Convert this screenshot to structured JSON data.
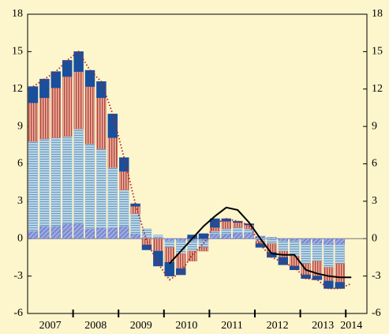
{
  "chart_data": {
    "type": "stacked_bar_line",
    "years": [
      "2007",
      "2008",
      "2009",
      "2010",
      "2011",
      "2012",
      "2013",
      "2014"
    ],
    "ylim": [
      -6,
      18
    ],
    "yticks": [
      -6,
      -3,
      0,
      3,
      6,
      9,
      12,
      15,
      18
    ],
    "y2lim": [
      -6,
      18
    ],
    "y2ticks": [
      -6,
      -3,
      0,
      3,
      6,
      9,
      12,
      15,
      18
    ],
    "series": [
      {
        "color": "#6f7fd0",
        "pattern": "hatch",
        "values": [
          0.6,
          1.0,
          1.0,
          1.2,
          1.2,
          0.8,
          0.9,
          0.9,
          1.0,
          0.4,
          0.1,
          0.1,
          -0.2,
          -0.2,
          -0.2,
          -0.2,
          0.4,
          0.4,
          0.5,
          0.5,
          0.2,
          0.1,
          -0.2,
          -0.2,
          -0.4,
          -0.4,
          -0.5,
          -0.5,
          null
        ]
      },
      {
        "color": "#9fc3dc",
        "pattern": "hlines",
        "values": [
          7.2,
          7.0,
          7.1,
          7.0,
          7.6,
          6.8,
          6.3,
          4.8,
          2.9,
          1.6,
          0.7,
          0.2,
          -0.5,
          -1.0,
          -0.8,
          -0.5,
          0.2,
          0.4,
          0.4,
          0.3,
          -0.2,
          -0.4,
          -0.8,
          -1.2,
          -1.6,
          -1.4,
          -1.8,
          -1.5,
          null
        ]
      },
      {
        "color": "#c9705f",
        "pattern": "vlines",
        "values": [
          3.1,
          3.3,
          4.0,
          4.8,
          4.6,
          4.6,
          4.1,
          2.4,
          1.5,
          0.6,
          -0.5,
          -1.0,
          -1.2,
          -1.2,
          -0.8,
          -0.3,
          0.3,
          0.6,
          0.4,
          0.3,
          -0.2,
          -0.7,
          -0.5,
          -0.8,
          -0.9,
          -1.2,
          -1.1,
          -1.5,
          null
        ]
      },
      {
        "color": "#1a4f9c",
        "pattern": "solid",
        "values": [
          1.3,
          1.5,
          1.3,
          1.3,
          1.6,
          1.3,
          1.3,
          1.9,
          1.1,
          0.2,
          -0.4,
          -1.2,
          -1.1,
          -0.5,
          0.3,
          0.4,
          0.7,
          0.2,
          0.1,
          0.1,
          -0.3,
          -0.4,
          -0.6,
          -0.3,
          -0.3,
          -0.3,
          -0.6,
          -0.5,
          null
        ]
      }
    ],
    "lines": [
      {
        "color": "#b02020",
        "style": "dotted",
        "values": [
          12.2,
          12.8,
          13.4,
          14.3,
          15.0,
          13.5,
          12.6,
          10.0,
          6.5,
          2.8,
          -0.2,
          -2.0,
          -3.3,
          -2.7,
          -1.3,
          -0.4,
          1.2,
          1.6,
          1.4,
          1.1,
          -0.5,
          -1.5,
          -1.9,
          -2.3,
          -3.2,
          -3.3,
          -4.0,
          -4.0,
          -3.6
        ]
      },
      {
        "color": "#000000",
        "style": "solid",
        "values": [
          null,
          null,
          null,
          null,
          null,
          null,
          null,
          null,
          null,
          null,
          null,
          null,
          -2.0,
          -1.0,
          0.0,
          1.0,
          1.8,
          2.5,
          2.3,
          1.3,
          0.0,
          -1.2,
          -1.3,
          -1.3,
          -2.5,
          -2.8,
          -3.0,
          -3.1,
          -3.1
        ]
      }
    ]
  }
}
